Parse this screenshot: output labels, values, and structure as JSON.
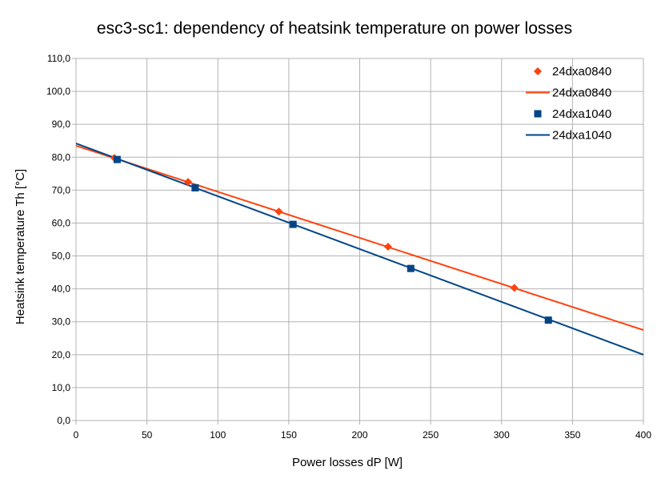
{
  "chart_data": {
    "type": "scatter",
    "title": "esc3-sc1: dependency of heatsink temperature on power losses",
    "xlabel": "Power losses dP [W]",
    "ylabel": "Heatsink temperature Th [°C]",
    "xlim": [
      0,
      400
    ],
    "ylim": [
      0,
      110
    ],
    "x_ticks": [
      0,
      50,
      100,
      150,
      200,
      250,
      300,
      350,
      400
    ],
    "y_ticks": [
      0,
      10,
      20,
      30,
      40,
      50,
      60,
      70,
      80,
      90,
      100,
      110
    ],
    "x_tick_labels": [
      "0",
      "50",
      "100",
      "150",
      "200",
      "250",
      "300",
      "350",
      "400"
    ],
    "y_tick_labels": [
      "0,0",
      "10,0",
      "20,0",
      "30,0",
      "40,0",
      "50,0",
      "60,0",
      "70,0",
      "80,0",
      "90,0",
      "100,0",
      "110,0"
    ],
    "grid": true,
    "legend_position": "top-right",
    "series": [
      {
        "name": "24dxa0840",
        "kind": "points",
        "marker": "diamond",
        "color": "#ff420e",
        "x": [
          27,
          79,
          143,
          220,
          309
        ],
        "y": [
          79.8,
          72.5,
          63.5,
          52.8,
          40.3
        ]
      },
      {
        "name": "24dxa0840",
        "kind": "trendline",
        "color": "#ff420e",
        "x": [
          0,
          400
        ],
        "y": [
          83.5,
          27.5
        ]
      },
      {
        "name": "24dxa1040",
        "kind": "points",
        "marker": "square",
        "color": "#004586",
        "x": [
          29,
          84,
          153,
          236,
          333
        ],
        "y": [
          79.3,
          70.7,
          59.6,
          46.2,
          30.5
        ]
      },
      {
        "name": "24dxa1040",
        "kind": "trendline",
        "color": "#004586",
        "x": [
          0,
          400
        ],
        "y": [
          84.2,
          20.0
        ]
      }
    ]
  }
}
